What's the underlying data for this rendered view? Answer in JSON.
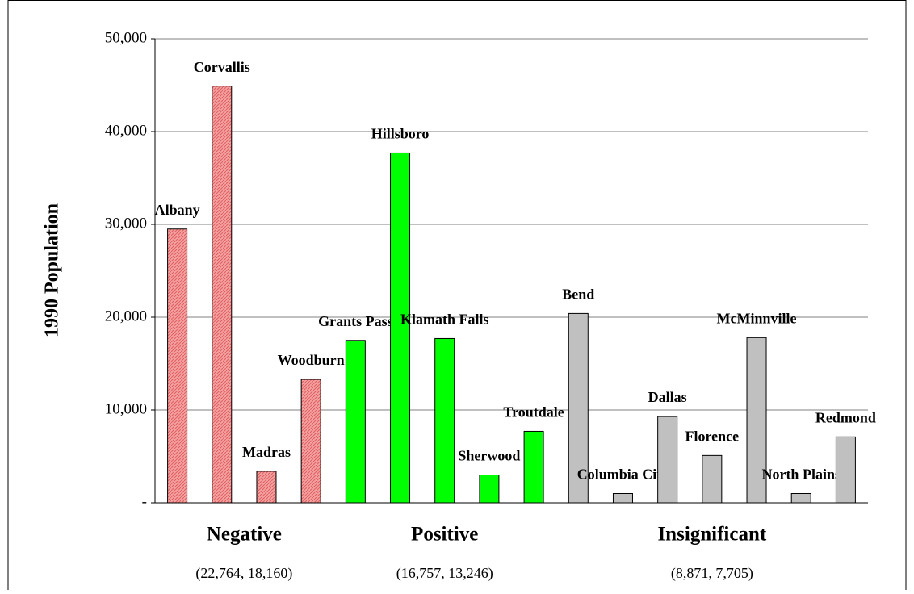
{
  "chart_data": {
    "type": "bar",
    "ylabel": "1990 Population",
    "ylim": [
      0,
      50000
    ],
    "yticks": [
      {
        "value": 0,
        "label": "-"
      },
      {
        "value": 10000,
        "label": "10,000"
      },
      {
        "value": 20000,
        "label": "20,000"
      },
      {
        "value": 30000,
        "label": "30,000"
      },
      {
        "value": 40000,
        "label": "40,000"
      },
      {
        "value": 50000,
        "label": "50,000"
      }
    ],
    "grid": true,
    "groups": [
      {
        "label": "Negative",
        "stats": "(22,764, 18,160)",
        "color": "#f08080",
        "pattern": true,
        "categories": [
          "Albany",
          "Corvallis",
          "Madras",
          "Woodburn"
        ],
        "values": [
          29500,
          44900,
          3400,
          13300
        ]
      },
      {
        "label": "Positive",
        "stats": "(16,757, 13,246)",
        "color": "#00ff00",
        "pattern": false,
        "categories": [
          "Grants Pass",
          "Hillsboro",
          "Klamath Falls",
          "Sherwood",
          "Troutdale"
        ],
        "values": [
          17500,
          37700,
          17700,
          3000,
          7700
        ]
      },
      {
        "label": "Insignificant",
        "stats": "(8,871, 7,705)",
        "color": "#c0c0c0",
        "pattern": false,
        "categories": [
          "Bend",
          "Columbia City",
          "Dallas",
          "Florence",
          "McMinnville",
          "North Plains",
          "Redmond"
        ],
        "values": [
          20400,
          1000,
          9300,
          5100,
          17800,
          1000,
          7100
        ]
      }
    ]
  }
}
